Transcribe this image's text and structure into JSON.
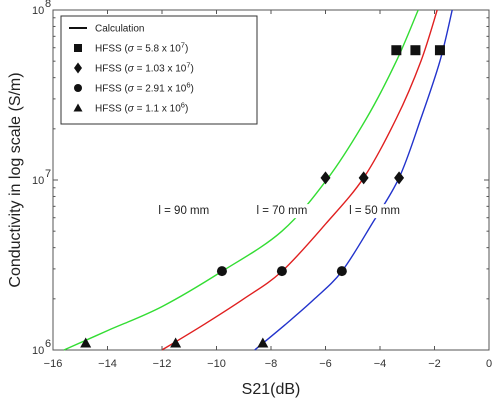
{
  "chart_data": {
    "type": "line",
    "xlabel": "S21(dB)",
    "ylabel": "Conductivity in log scale (S/m)",
    "xlim": [
      -16,
      0
    ],
    "ylim": [
      1000000,
      100000000
    ],
    "yscale": "log",
    "xticks": [
      -16,
      -14,
      -12,
      -10,
      -8,
      -6,
      -4,
      -2,
      0
    ],
    "xtick_labels": [
      "−16",
      "−14",
      "−12",
      "−10",
      "−8",
      "−6",
      "−4",
      "−2",
      "0"
    ],
    "ytick_labels": [
      {
        "value": 1000000,
        "base": "10",
        "exp": "6"
      },
      {
        "value": 10000000,
        "base": "10",
        "exp": "7"
      },
      {
        "value": 100000000,
        "base": "10",
        "exp": "8"
      }
    ],
    "legend": {
      "placement": "top-left",
      "entries": [
        {
          "marker": "line",
          "label": "Calculation"
        },
        {
          "marker": "square",
          "prefix": "HFSS (",
          "sigma": "σ",
          "mid": " = 5.8 x 10",
          "exp": "7",
          "suffix": ")"
        },
        {
          "marker": "diamond",
          "prefix": "HFSS (",
          "sigma": "σ",
          "mid": " = 1.03 x 10",
          "exp": "7",
          "suffix": ")"
        },
        {
          "marker": "circle",
          "prefix": "HFSS (",
          "sigma": "σ",
          "mid": " = 2.91 x 10",
          "exp": "6",
          "suffix": ")"
        },
        {
          "marker": "triangle",
          "prefix": "HFSS (",
          "sigma": "σ",
          "mid": " = 1.1 x 10",
          "exp": "6",
          "suffix": ")"
        }
      ]
    },
    "series": [
      {
        "name": "l = 90 mm",
        "color": "#33dd33",
        "x": [
          -15.6,
          -14.0,
          -12.0,
          -9.8,
          -7.6,
          -5.9,
          -4.5,
          -3.4,
          -2.6
        ],
        "y": [
          1000000,
          1300000,
          1800000,
          2900000,
          5000000,
          10300000,
          23000000,
          50000000,
          100000000
        ]
      },
      {
        "name": "l = 70 mm",
        "color": "#e02020",
        "x": [
          -12.0,
          -10.5,
          -9.0,
          -7.6,
          -6.0,
          -4.6,
          -3.4,
          -2.5,
          -1.9
        ],
        "y": [
          1000000,
          1400000,
          2000000,
          2900000,
          5500000,
          10300000,
          23000000,
          50000000,
          100000000
        ]
      },
      {
        "name": "l = 50 mm",
        "color": "#2233cc",
        "x": [
          -8.6,
          -7.5,
          -6.4,
          -5.4,
          -4.3,
          -3.3,
          -2.5,
          -1.8,
          -1.35
        ],
        "y": [
          1000000,
          1400000,
          2000000,
          2900000,
          5500000,
          10300000,
          23000000,
          50000000,
          100000000
        ]
      }
    ],
    "hfss_points": [
      {
        "marker": "square",
        "points": [
          [
            -3.4,
            58000000
          ],
          [
            -2.7,
            58000000
          ],
          [
            -1.8,
            58000000
          ]
        ]
      },
      {
        "marker": "diamond",
        "points": [
          [
            -6.0,
            10300000
          ],
          [
            -4.6,
            10300000
          ],
          [
            -3.3,
            10300000
          ]
        ]
      },
      {
        "marker": "circle",
        "points": [
          [
            -9.8,
            2910000
          ],
          [
            -7.6,
            2910000
          ],
          [
            -5.4,
            2910000
          ]
        ]
      },
      {
        "marker": "triangle",
        "points": [
          [
            -14.8,
            1100000
          ],
          [
            -11.5,
            1100000
          ],
          [
            -8.3,
            1100000
          ]
        ]
      }
    ],
    "annotations": [
      {
        "text": "l = 90 mm",
        "x": -11.2,
        "y": 6300000
      },
      {
        "text": "l = 70 mm",
        "x": -7.6,
        "y": 6300000
      },
      {
        "text": "l = 50 mm",
        "x": -4.2,
        "y": 6300000
      }
    ],
    "grid": false
  }
}
